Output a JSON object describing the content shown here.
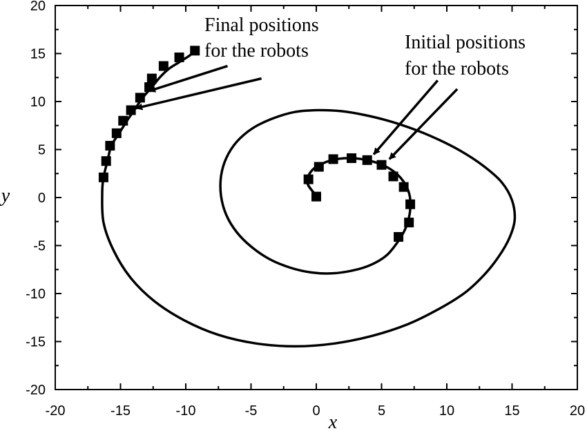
{
  "chart_data": {
    "type": "scatter",
    "xlabel": "x",
    "ylabel": "y",
    "xlim": [
      -20,
      20
    ],
    "ylim": [
      -20,
      20
    ],
    "xticks": [
      "-20",
      "-15",
      "-10",
      "-5",
      "0",
      "5",
      "10",
      "15",
      "20"
    ],
    "yticks": [
      "20",
      "15",
      "10",
      "5",
      "0",
      "-5",
      "-10",
      "-15",
      "-20"
    ],
    "grid": false,
    "legend": "none",
    "series": [
      {
        "kind": "line",
        "points": [
          [
            0.0,
            0.2
          ],
          [
            -0.7,
            1.6
          ],
          [
            -0.2,
            3.0
          ],
          [
            1.2,
            3.9
          ],
          [
            2.7,
            4.1
          ],
          [
            4.2,
            3.8
          ],
          [
            5.5,
            3.1
          ],
          [
            6.5,
            2.0
          ],
          [
            7.1,
            0.5
          ],
          [
            7.2,
            -1.2
          ],
          [
            6.9,
            -3.0
          ],
          [
            6.3,
            -4.5
          ],
          [
            5.4,
            -6.0
          ],
          [
            4.2,
            -7.0
          ],
          [
            2.8,
            -7.6
          ],
          [
            1.2,
            -7.9
          ],
          [
            -0.4,
            -7.8
          ],
          [
            -2.0,
            -7.3
          ],
          [
            -3.6,
            -6.4
          ],
          [
            -5.0,
            -5.1
          ],
          [
            -6.1,
            -3.6
          ],
          [
            -6.9,
            -1.8
          ],
          [
            -7.3,
            0.2
          ],
          [
            -7.3,
            2.2
          ],
          [
            -6.9,
            4.1
          ],
          [
            -6.1,
            5.8
          ],
          [
            -4.9,
            7.2
          ],
          [
            -3.4,
            8.2
          ],
          [
            -1.7,
            8.9
          ],
          [
            0.1,
            9.1
          ],
          [
            1.9,
            9.0
          ],
          [
            3.7,
            8.6
          ],
          [
            5.5,
            8.0
          ],
          [
            7.3,
            7.2
          ],
          [
            9.1,
            6.2
          ],
          [
            11.0,
            4.9
          ],
          [
            12.8,
            3.3
          ],
          [
            14.2,
            1.6
          ],
          [
            15.0,
            -0.3
          ],
          [
            15.2,
            -2.3
          ],
          [
            14.8,
            -4.2
          ],
          [
            14.0,
            -6.1
          ],
          [
            12.9,
            -8.0
          ],
          [
            11.4,
            -9.9
          ],
          [
            9.4,
            -11.6
          ],
          [
            7.0,
            -13.2
          ],
          [
            4.3,
            -14.4
          ],
          [
            1.4,
            -15.2
          ],
          [
            -1.6,
            -15.5
          ],
          [
            -4.6,
            -15.2
          ],
          [
            -7.5,
            -14.3
          ],
          [
            -10.1,
            -12.8
          ],
          [
            -12.4,
            -10.8
          ],
          [
            -14.2,
            -8.4
          ],
          [
            -15.5,
            -5.6
          ],
          [
            -16.3,
            -2.6
          ],
          [
            -16.4,
            0.5
          ],
          [
            -16.3,
            2.1
          ],
          [
            -16.0,
            3.8
          ],
          [
            -15.7,
            5.4
          ],
          [
            -15.1,
            6.7
          ],
          [
            -14.5,
            8.0
          ],
          [
            -13.9,
            9.2
          ],
          [
            -13.3,
            10.4
          ],
          [
            -12.6,
            11.5
          ],
          [
            -12.0,
            12.5
          ],
          [
            -11.3,
            13.4
          ],
          [
            -10.5,
            14.1
          ],
          [
            -9.7,
            14.8
          ],
          [
            -9.2,
            15.4
          ]
        ]
      },
      {
        "kind": "markers",
        "name": "Initial positions",
        "points": [
          [
            0.0,
            0.1
          ],
          [
            -0.6,
            1.9
          ],
          [
            0.2,
            3.2
          ],
          [
            1.3,
            4.0
          ],
          [
            2.7,
            4.1
          ],
          [
            3.9,
            3.9
          ],
          [
            5.0,
            3.4
          ],
          [
            5.9,
            2.2
          ],
          [
            6.7,
            1.1
          ],
          [
            7.2,
            -0.7
          ],
          [
            7.1,
            -2.6
          ],
          [
            6.3,
            -4.1
          ]
        ]
      },
      {
        "kind": "markers",
        "name": "Final positions",
        "points": [
          [
            -16.3,
            2.1
          ],
          [
            -16.1,
            3.8
          ],
          [
            -15.8,
            5.4
          ],
          [
            -15.3,
            6.7
          ],
          [
            -14.8,
            8.0
          ],
          [
            -14.2,
            9.1
          ],
          [
            -13.5,
            10.4
          ],
          [
            -12.8,
            11.5
          ],
          [
            -12.6,
            12.4
          ],
          [
            -11.7,
            13.7
          ],
          [
            -10.5,
            14.6
          ],
          [
            -9.3,
            15.3
          ]
        ]
      }
    ],
    "annotations": [
      {
        "lines": [
          "Final positions",
          "for the robots"
        ],
        "arrows": [
          {
            "from": [
              -6.8,
              13.7
            ],
            "to": [
              -12.8,
              11.1
            ]
          },
          {
            "from": [
              -4.2,
              12.4
            ],
            "to": [
              -13.8,
              9.3
            ]
          }
        ]
      },
      {
        "lines": [
          "Initial positions",
          "for the robots"
        ],
        "arrows": [
          {
            "from": [
              9.3,
              12.2
            ],
            "to": [
              4.4,
              4.5
            ]
          },
          {
            "from": [
              10.8,
              11.3
            ],
            "to": [
              5.6,
              4.0
            ]
          }
        ]
      }
    ]
  }
}
